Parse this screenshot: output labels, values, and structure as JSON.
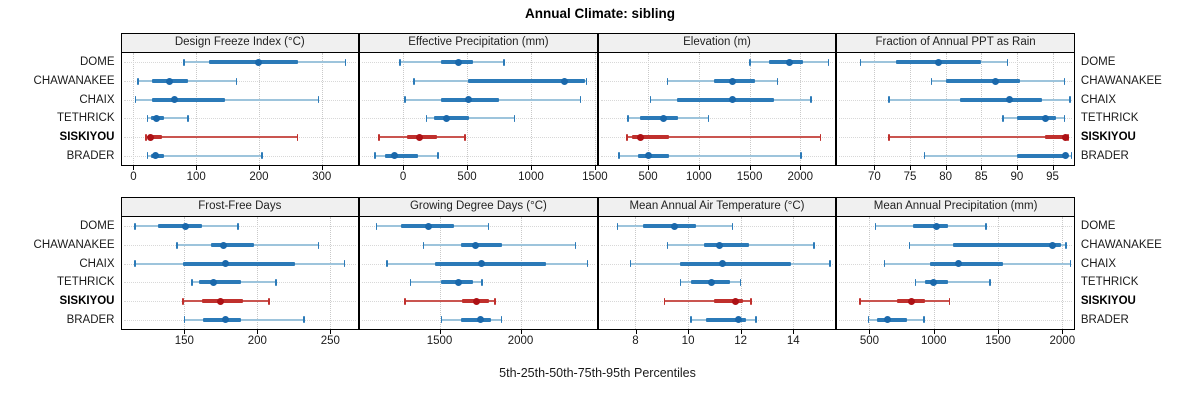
{
  "chart_data": {
    "type": "dotplot-percentile-trellis",
    "title": "Annual Climate: sibling",
    "footer": "5th-25th-50th-75th-95th Percentiles",
    "percentile_labels": [
      "5th",
      "25th",
      "50th",
      "75th",
      "95th"
    ],
    "sites": [
      "DOME",
      "CHAWANAKEE",
      "CHAIX",
      "TETHRICK",
      "SISKIYOU",
      "BRADER"
    ],
    "highlight_site": "SISKIYOU",
    "legend_position": "none",
    "grid": "dotted",
    "colors": {
      "blue_dot": "#1a68ab",
      "blue_box": "#2b7ab8",
      "blue_line": "#9dc4dc",
      "red_dot": "#ad1115",
      "red_box": "#c0302d",
      "red_line": "#ca5550",
      "grid_v": "#c9c9c9",
      "grid_h": "#d8d8d8",
      "header_bg": "#f0f0f0",
      "border": "#000000"
    },
    "panels": [
      {
        "id": "design-freeze-index",
        "title": "Design Freeze Index (°C)",
        "row": 0,
        "xlim": [
          -19,
          358
        ],
        "ticks": [
          0,
          100,
          200,
          300
        ],
        "series": {
          "DOME": [
            80,
            120,
            200,
            262,
            338
          ],
          "CHAWANAKEE": [
            7,
            30,
            57,
            87,
            165
          ],
          "CHAIX": [
            3,
            30,
            65,
            146,
            295
          ],
          "TETHRICK": [
            22,
            28,
            37,
            49,
            87
          ],
          "SISKIYOU": [
            20,
            24,
            27,
            45,
            262
          ],
          "BRADER": [
            22,
            28,
            35,
            49,
            205
          ]
        }
      },
      {
        "id": "effective-precipitation",
        "title": "Effective Precipitation (mm)",
        "row": 0,
        "xlim": [
          -336,
          1514
        ],
        "ticks": [
          0,
          500,
          1000,
          1500
        ],
        "series": {
          "DOME": [
            -25,
            295,
            430,
            545,
            790
          ],
          "CHAWANAKEE": [
            85,
            505,
            1265,
            1420,
            1435
          ],
          "CHAIX": [
            15,
            300,
            510,
            750,
            1390
          ],
          "TETHRICK": [
            180,
            245,
            340,
            515,
            875
          ],
          "SISKIYOU": [
            -190,
            30,
            130,
            265,
            485
          ],
          "BRADER": [
            -220,
            -140,
            -65,
            115,
            275
          ]
        }
      },
      {
        "id": "elevation",
        "title": "Elevation (m)",
        "row": 0,
        "xlim": [
          13,
          2345
        ],
        "ticks": [
          500,
          1000,
          1500,
          2000
        ],
        "series": {
          "DOME": [
            1500,
            1690,
            1890,
            2030,
            2280
          ],
          "CHAWANAKEE": [
            690,
            1150,
            1330,
            1550,
            1780
          ],
          "CHAIX": [
            520,
            780,
            1330,
            1740,
            2110
          ],
          "TETHRICK": [
            300,
            420,
            650,
            790,
            1100
          ],
          "SISKIYOU": [
            290,
            340,
            430,
            710,
            2200
          ],
          "BRADER": [
            210,
            400,
            500,
            710,
            2010
          ]
        }
      },
      {
        "id": "fraction-annual-ppt-rain",
        "title": "Fraction of Annual PPT as Rain",
        "row": 0,
        "xlim": [
          64.8,
          98
        ],
        "ticks": [
          70,
          75,
          80,
          85,
          90,
          95
        ],
        "series": {
          "DOME": [
            68,
            73,
            79,
            85,
            88.7
          ],
          "CHAWANAKEE": [
            78,
            80,
            87,
            90.5,
            96.7
          ],
          "CHAIX": [
            72,
            82,
            89,
            93.5,
            97.5
          ],
          "TETHRICK": [
            88,
            90,
            94,
            95.5,
            96.7
          ],
          "SISKIYOU": [
            72,
            94,
            96.8,
            97,
            97.2
          ],
          "BRADER": [
            77,
            90,
            96.8,
            97.2,
            97.7
          ]
        }
      },
      {
        "id": "frost-free-days",
        "title": "Frost-Free Days",
        "row": 1,
        "xlim": [
          107,
          269
        ],
        "ticks": [
          150,
          200,
          250
        ],
        "series": {
          "DOME": [
            116,
            132,
            151,
            162,
            187
          ],
          "CHAWANAKEE": [
            145,
            168,
            177,
            198,
            242
          ],
          "CHAIX": [
            116,
            149,
            178,
            226,
            260
          ],
          "TETHRICK": [
            155,
            160,
            170,
            189,
            213
          ],
          "SISKIYOU": [
            149,
            162,
            175,
            190,
            208
          ],
          "BRADER": [
            150,
            163,
            178,
            189,
            232
          ]
        }
      },
      {
        "id": "growing-degree-days",
        "title": "Growing Degree Days (°C)",
        "row": 1,
        "xlim": [
          1010,
          2470
        ],
        "ticks": [
          1500,
          2000
        ],
        "series": {
          "DOME": [
            1110,
            1265,
            1430,
            1590,
            1805
          ],
          "CHAWANAKEE": [
            1400,
            1630,
            1720,
            1885,
            2340
          ],
          "CHAIX": [
            1175,
            1470,
            1760,
            2160,
            2415
          ],
          "TETHRICK": [
            1320,
            1510,
            1620,
            1705,
            1765
          ],
          "SISKIYOU": [
            1285,
            1640,
            1730,
            1805,
            1845
          ],
          "BRADER": [
            1510,
            1635,
            1750,
            1815,
            1885
          ]
        }
      },
      {
        "id": "mean-annual-air-temperature",
        "title": "Mean Annual Air Temperature (°C)",
        "row": 1,
        "xlim": [
          6.6,
          15.6
        ],
        "ticks": [
          8,
          10,
          12,
          14
        ],
        "series": {
          "DOME": [
            7.3,
            8.3,
            9.5,
            10.3,
            11.7
          ],
          "CHAWANAKEE": [
            9.2,
            10.6,
            11.2,
            12.3,
            14.8
          ],
          "CHAIX": [
            7.8,
            9.7,
            11.3,
            13.9,
            15.4
          ],
          "TETHRICK": [
            9.7,
            10.1,
            10.9,
            11.6,
            12
          ],
          "SISKIYOU": [
            9.1,
            11,
            11.8,
            12.1,
            12.4
          ],
          "BRADER": [
            10.1,
            10.7,
            11.9,
            12.2,
            12.6
          ]
        }
      },
      {
        "id": "mean-annual-precipitation",
        "title": "Mean Annual Precipitation (mm)",
        "row": 1,
        "xlim": [
          250,
          2090
        ],
        "ticks": [
          500,
          1000,
          1500,
          2000
        ],
        "series": {
          "DOME": [
            545,
            840,
            1025,
            1110,
            1410
          ],
          "CHAWANAKEE": [
            810,
            1150,
            1925,
            1990,
            2030
          ],
          "CHAIX": [
            615,
            970,
            1190,
            1535,
            2065
          ],
          "TETHRICK": [
            855,
            930,
            995,
            1110,
            1440
          ],
          "SISKIYOU": [
            425,
            715,
            830,
            930,
            1125
          ],
          "BRADER": [
            490,
            560,
            640,
            790,
            925
          ]
        }
      }
    ]
  }
}
